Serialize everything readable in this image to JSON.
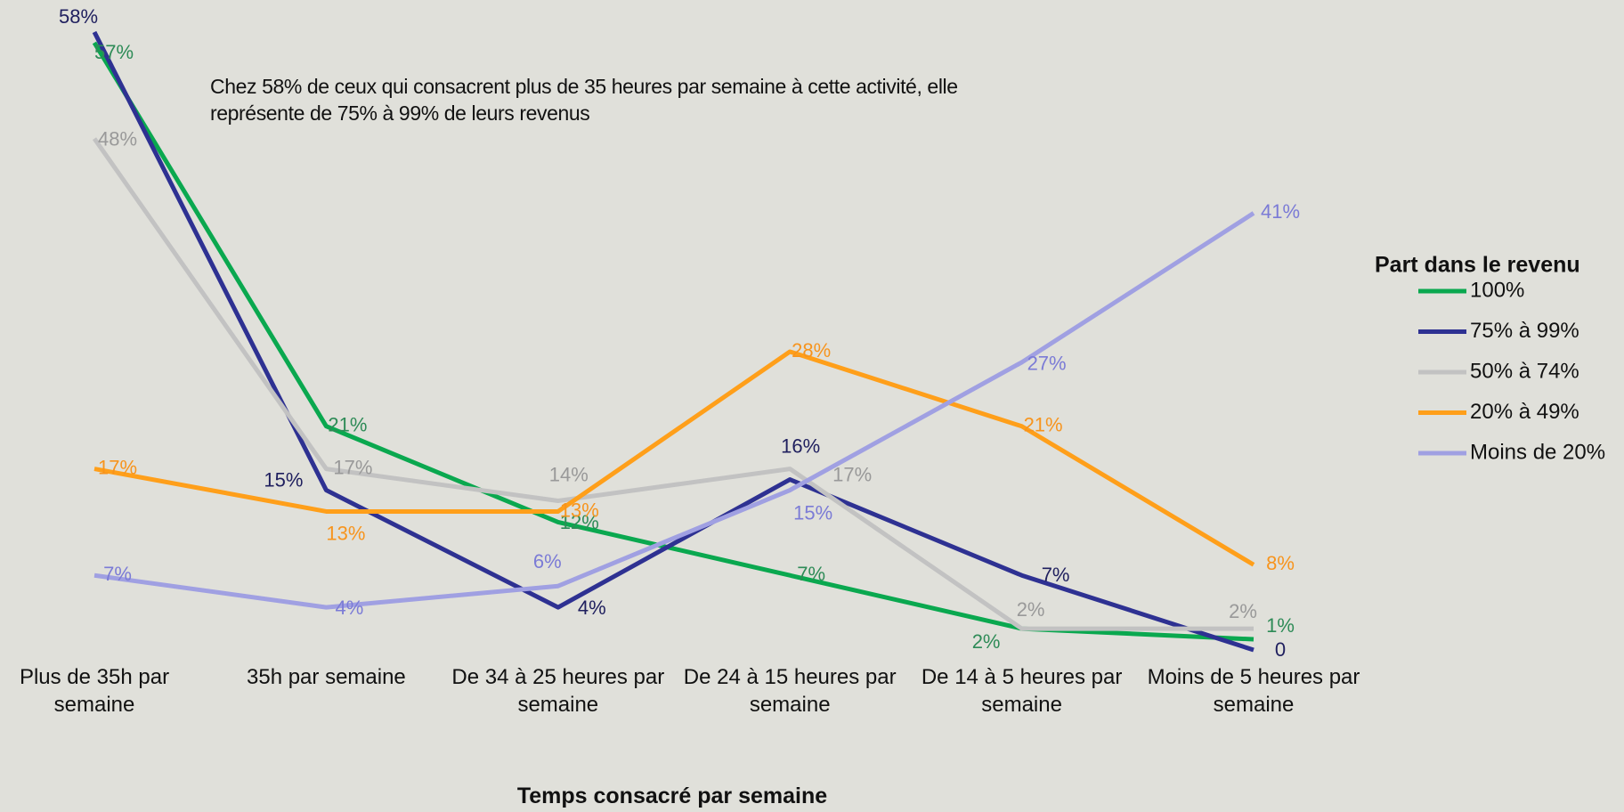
{
  "chart_data": {
    "type": "line",
    "annotation": "Chez 58% de ceux qui consacrent plus de 35 heures par semaine à cette activité, elle représente de 75% à 99% de leurs revenus",
    "x_label": "Temps consacré par semaine",
    "legend_title": "Part dans le revenu",
    "legend": "right",
    "categories": [
      "Plus de 35h par semaine",
      "35h par semaine",
      "De 34 à 25 heures par semaine",
      "De 24 à 15 heures par semaine",
      "De 14 à 5 heures par semaine",
      "Moins de 5 heures par semaine"
    ],
    "series": [
      {
        "name": "100%",
        "color": "#0aa84f",
        "label_color": "#2e8b57",
        "values": [
          57,
          21,
          12,
          7,
          2,
          1
        ],
        "value_labels": [
          "57%",
          "21%",
          "12%",
          "7%",
          "2%",
          "1%"
        ]
      },
      {
        "name": "75% à 99%",
        "color": "#2e3192",
        "label_color": "#1f1f5e",
        "values": [
          58,
          15,
          4,
          16,
          7,
          0
        ],
        "value_labels": [
          "58%",
          "15%",
          "4%",
          "16%",
          "7%",
          "0"
        ]
      },
      {
        "name": "50% à 74%",
        "color": "#c2c2c2",
        "label_color": "#999999",
        "values": [
          48,
          17,
          14,
          17,
          2,
          2
        ],
        "value_labels": [
          "48%",
          "17%",
          "14%",
          "17%",
          "2%",
          "2%"
        ]
      },
      {
        "name": "20% à 49%",
        "color": "#ff9f1a",
        "label_color": "#f7941d",
        "values": [
          17,
          13,
          13,
          28,
          21,
          8
        ],
        "value_labels": [
          "17%",
          "13%",
          "13%",
          "28%",
          "21%",
          "8%"
        ]
      },
      {
        "name": "Moins de 20%",
        "color": "#a0a0e2",
        "label_color": "#7b7bd6",
        "values": [
          7,
          4,
          6,
          15,
          27,
          41
        ],
        "value_labels": [
          "7%",
          "4%",
          "6%",
          "15%",
          "27%",
          "41%"
        ]
      }
    ]
  }
}
